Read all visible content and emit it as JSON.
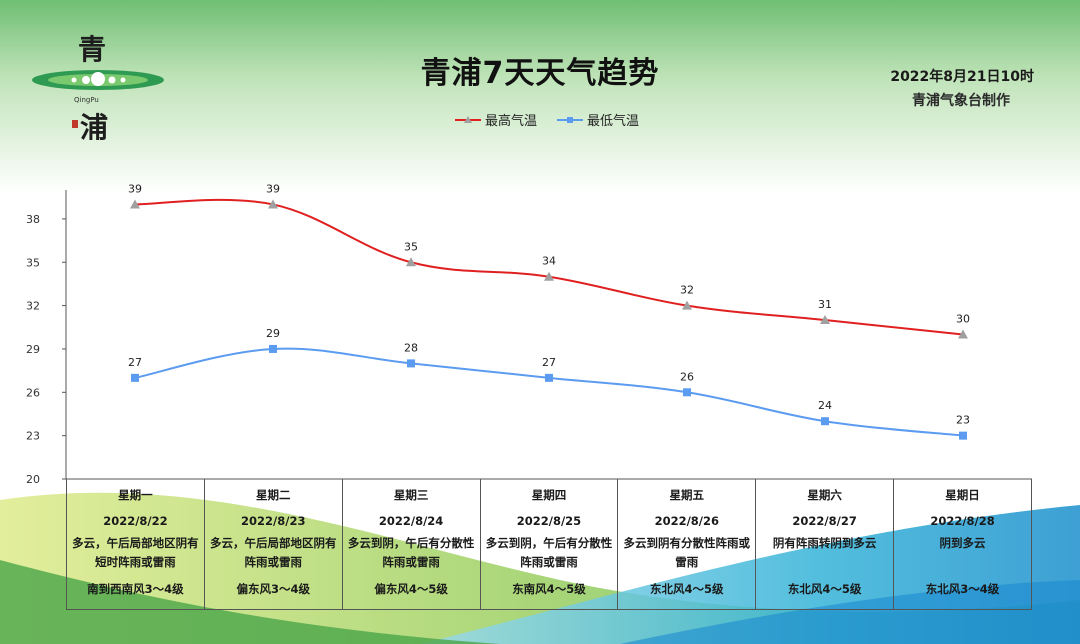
{
  "header": {
    "title": "青浦7天天气趋势",
    "datetime": "2022年8月21日10时",
    "producer": "青浦气象台制作"
  },
  "logo": {
    "char_top": "青",
    "char_bottom": "浦",
    "sub_text": "QingPu"
  },
  "colors": {
    "high_line": "#e02020",
    "high_marker": "#a0a0a0",
    "low_line": "#5b9bf0",
    "low_marker": "#5b9bf0",
    "axis": "#555555"
  },
  "chart_data": {
    "type": "line",
    "categories": [
      "星期一",
      "星期二",
      "星期三",
      "星期四",
      "星期五",
      "星期六",
      "星期日"
    ],
    "series": [
      {
        "name": "最高气温",
        "values": [
          39,
          39,
          35,
          34,
          32,
          31,
          30
        ]
      },
      {
        "name": "最低气温",
        "values": [
          27,
          29,
          28,
          27,
          26,
          24,
          23
        ]
      }
    ],
    "ylim": [
      20,
      40
    ],
    "yticks": [
      20,
      23,
      26,
      29,
      32,
      35,
      38
    ],
    "legend_position": "top-center",
    "data_labels": true,
    "grid": false
  },
  "forecast_table": [
    {
      "day": "星期一",
      "date": "2022/8/22",
      "desc": "多云，午后局部地区阴有短时阵雨或雷雨",
      "wind": "南到西南风3～4级"
    },
    {
      "day": "星期二",
      "date": "2022/8/23",
      "desc": "多云，午后局部地区阴有阵雨或雷雨",
      "wind": "偏东风3～4级"
    },
    {
      "day": "星期三",
      "date": "2022/8/24",
      "desc": "多云到阴，午后有分散性阵雨或雷雨",
      "wind": "偏东风4～5级"
    },
    {
      "day": "星期四",
      "date": "2022/8/25",
      "desc": "多云到阴，午后有分散性阵雨或雷雨",
      "wind": "东南风4～5级"
    },
    {
      "day": "星期五",
      "date": "2022/8/26",
      "desc": "多云到阴有分散性阵雨或雷雨",
      "wind": "东北风4～5级"
    },
    {
      "day": "星期六",
      "date": "2022/8/27",
      "desc": "阴有阵雨转阴到多云",
      "wind": "东北风4～5级"
    },
    {
      "day": "星期日",
      "date": "2022/8/28",
      "desc": "阴到多云",
      "wind": "东北风3～4级"
    }
  ]
}
